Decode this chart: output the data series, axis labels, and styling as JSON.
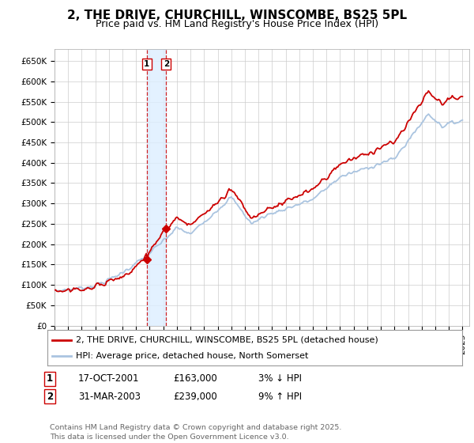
{
  "title": "2, THE DRIVE, CHURCHILL, WINSCOMBE, BS25 5PL",
  "subtitle": "Price paid vs. HM Land Registry's House Price Index (HPI)",
  "legend_line1": "2, THE DRIVE, CHURCHILL, WINSCOMBE, BS25 5PL (detached house)",
  "legend_line2": "HPI: Average price, detached house, North Somerset",
  "footer": "Contains HM Land Registry data © Crown copyright and database right 2025.\nThis data is licensed under the Open Government Licence v3.0.",
  "sale1_date": "17-OCT-2001",
  "sale1_price": 163000,
  "sale1_label": "3% ↓ HPI",
  "sale2_date": "31-MAR-2003",
  "sale2_price": 239000,
  "sale2_label": "9% ↑ HPI",
  "hpi_color": "#aac4e0",
  "property_color": "#cc0000",
  "vline_color": "#cc0000",
  "shade_color": "#ddeeff",
  "ylim_min": 0,
  "ylim_max": 680000,
  "xlim_min": 1995,
  "xlim_max": 2025.5,
  "background_color": "#ffffff",
  "grid_color": "#cccccc",
  "title_fontsize": 11,
  "subtitle_fontsize": 9,
  "tick_fontsize": 7.5,
  "legend_fontsize": 8,
  "table_fontsize": 8.5,
  "footer_fontsize": 6.8
}
